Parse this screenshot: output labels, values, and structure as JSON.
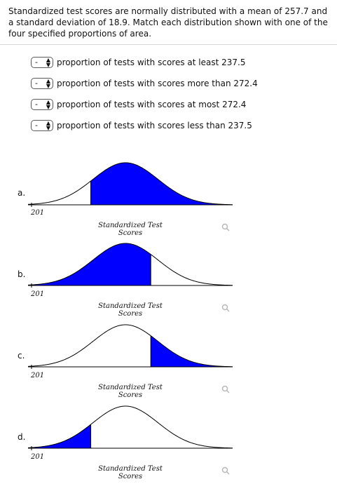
{
  "question": {
    "text": "Standardized test scores are normally distributed with a mean of 257.7 and a standard deviation of 18.9. Match each distribution shown with one of the four specified proportions of area."
  },
  "matches": [
    {
      "selected": "-",
      "statement": "proportion of tests with scores at least 237.5"
    },
    {
      "selected": "-",
      "statement": "proportion of tests with scores more than 272.4"
    },
    {
      "selected": "-",
      "statement": "proportion of tests with scores at most 272.4"
    },
    {
      "selected": "-",
      "statement": "proportion of tests with scores less than 237.5"
    }
  ],
  "options": [
    {
      "label": "a.",
      "axis_min": "201",
      "axis_title": "Standardized Test Scores",
      "shading": "at least 237.5"
    },
    {
      "label": "b.",
      "axis_min": "201",
      "axis_title": "Standardized Test Scores",
      "shading": "at most 272.4"
    },
    {
      "label": "c.",
      "axis_min": "201",
      "axis_title": "Standardized Test Scores",
      "shading": "more than 272.4"
    },
    {
      "label": "d.",
      "axis_min": "201",
      "axis_title": "Standardized Test Scores",
      "shading": "less than 237.5"
    }
  ],
  "colors": {
    "shade": "#0000ff",
    "curve": "#000000",
    "zoom_icon": "#b8b8b8"
  },
  "icons": {
    "zoom": "magnifier-icon",
    "select_arrows": "up-down-arrows-icon"
  }
}
